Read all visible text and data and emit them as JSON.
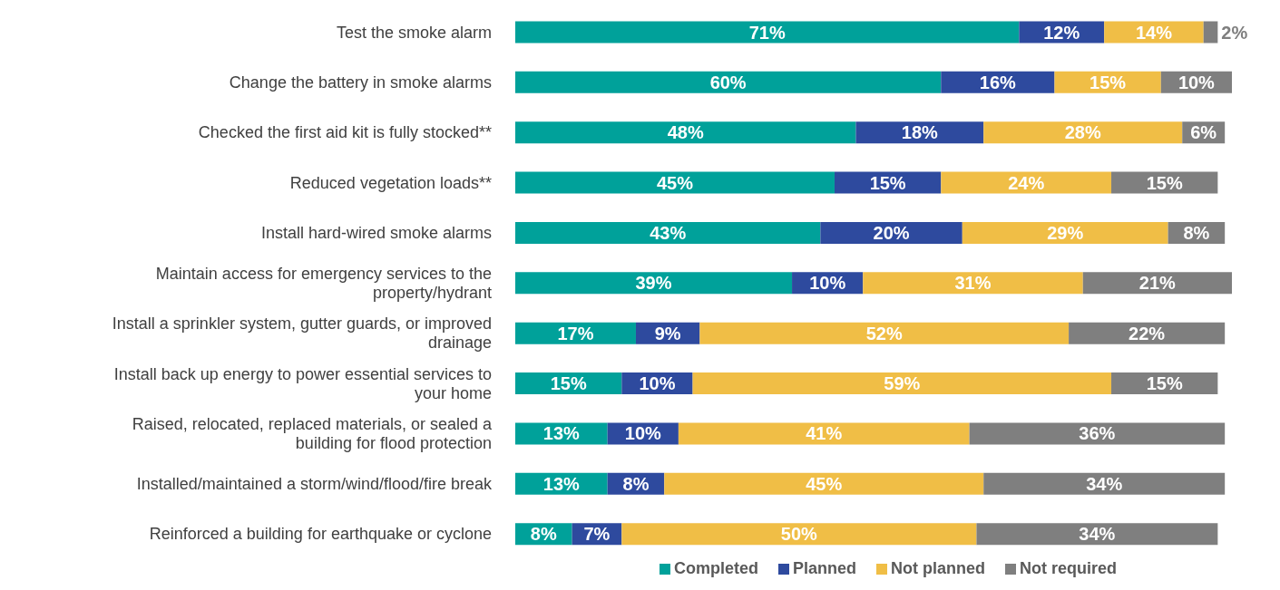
{
  "chart_data": {
    "type": "bar",
    "orientation": "horizontal",
    "stacked": true,
    "legend": "bottom",
    "categories": [
      "Test the smoke alarm",
      "Change the battery in smoke alarms",
      "Checked the first aid kit is fully stocked**",
      "Reduced vegetation loads**",
      "Install hard-wired smoke alarms",
      "Maintain access for emergency services to the property/hydrant",
      "Install a sprinkler system, gutter guards, or improved drainage",
      "Install back up energy to power essential services to your home",
      "Raised, relocated, replaced materials, or sealed a building for flood protection",
      "Installed/maintained a storm/wind/flood/fire break",
      "Reinforced a building for earthquake or cyclone"
    ],
    "series": [
      {
        "name": "Completed",
        "color": "#00a19a",
        "values": [
          71,
          60,
          48,
          45,
          43,
          39,
          17,
          15,
          13,
          13,
          8
        ],
        "value_labels": [
          "71%",
          "60%",
          "48%",
          "45%",
          "43%",
          "39%",
          "17%",
          "15%",
          "13%",
          "13%",
          "8%"
        ]
      },
      {
        "name": "Planned",
        "color": "#2e4a9e",
        "values": [
          12,
          16,
          18,
          15,
          20,
          10,
          9,
          10,
          10,
          8,
          7
        ],
        "value_labels": [
          "12%",
          "16%",
          "18%",
          "15%",
          "20%",
          "10%",
          "9%",
          "10%",
          "10%",
          "8%",
          "7%"
        ]
      },
      {
        "name": "Not planned",
        "color": "#f0be46",
        "values": [
          14,
          15,
          28,
          24,
          29,
          31,
          52,
          59,
          41,
          45,
          50
        ],
        "value_labels": [
          "14%",
          "15%",
          "28%",
          "24%",
          "29%",
          "31%",
          "52%",
          "59%",
          "41%",
          "45%",
          "50%"
        ]
      },
      {
        "name": "Not required",
        "color": "#7f7f7f",
        "values": [
          2,
          10,
          6,
          15,
          8,
          21,
          22,
          15,
          36,
          34,
          34
        ],
        "value_labels": [
          "2%",
          "10%",
          "6%",
          "15%",
          "8%",
          "21%",
          "22%",
          "15%",
          "36%",
          "34%",
          "34%"
        ]
      }
    ]
  }
}
